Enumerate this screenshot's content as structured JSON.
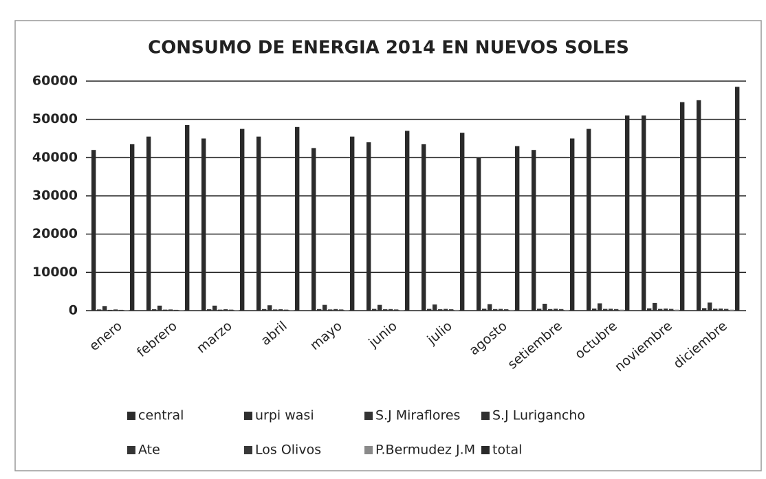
{
  "chart_data": {
    "type": "bar",
    "title": "CONSUMO DE ENERGIA 2014 EN NUEVOS SOLES",
    "categories": [
      "enero",
      "febrero",
      "marzo",
      "abril",
      "mayo",
      "junio",
      "julio",
      "agosto",
      "setiembre",
      "octubre",
      "noviembre",
      "diciembre"
    ],
    "series": [
      {
        "name": "central",
        "color": "#2b2b2b",
        "values": [
          42000,
          45500,
          45000,
          45500,
          42500,
          44000,
          43500,
          40000,
          42000,
          47500,
          51000,
          55000
        ]
      },
      {
        "name": "urpi wasi",
        "color": "#2e2e2e",
        "values": [
          300,
          350,
          350,
          400,
          400,
          450,
          450,
          500,
          500,
          550,
          600,
          650
        ]
      },
      {
        "name": "S.J Miraflores",
        "color": "#333333",
        "values": [
          1200,
          1300,
          1300,
          1400,
          1500,
          1500,
          1600,
          1700,
          1800,
          1900,
          2000,
          2100
        ]
      },
      {
        "name": "S.J Lurigancho",
        "color": "#303030",
        "values": [
          200,
          250,
          250,
          300,
          300,
          350,
          350,
          400,
          400,
          450,
          450,
          500
        ]
      },
      {
        "name": "Ate",
        "color": "#353535",
        "values": [
          300,
          300,
          350,
          350,
          400,
          400,
          450,
          450,
          500,
          500,
          550,
          550
        ]
      },
      {
        "name": "Los Olivos",
        "color": "#383838",
        "values": [
          200,
          200,
          250,
          250,
          300,
          300,
          350,
          350,
          400,
          400,
          450,
          450
        ]
      },
      {
        "name": "P.Bermudez J.M",
        "color": "#8a8a8a",
        "values": [
          100,
          100,
          100,
          150,
          150,
          150,
          200,
          200,
          200,
          250,
          250,
          250
        ]
      },
      {
        "name": "total",
        "color": "#2a2a2a",
        "values": [
          43500,
          48500,
          47500,
          48000,
          45500,
          47000,
          46500,
          43000,
          45000,
          51000,
          54500,
          58500
        ]
      }
    ],
    "ylim": [
      0,
      60000
    ],
    "yticks": [
      0,
      10000,
      20000,
      30000,
      40000,
      50000,
      60000
    ],
    "grid": true
  }
}
